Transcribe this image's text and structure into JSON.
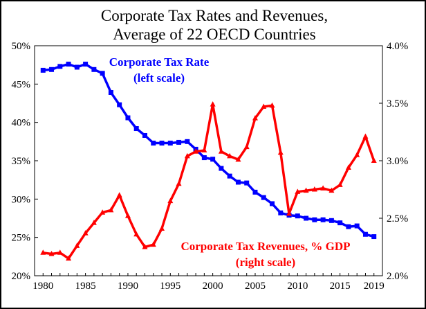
{
  "chart_data": {
    "type": "line",
    "title_line1": "Corporate Tax Rates and Revenues,",
    "title_line2": "Average of 22 OECD Countries",
    "x": [
      1980,
      1981,
      1982,
      1983,
      1984,
      1985,
      1986,
      1987,
      1988,
      1989,
      1990,
      1991,
      1992,
      1993,
      1994,
      1995,
      1996,
      1997,
      1998,
      1999,
      2000,
      2001,
      2002,
      2003,
      2004,
      2005,
      2006,
      2007,
      2008,
      2009,
      2010,
      2011,
      2012,
      2013,
      2014,
      2015,
      2016,
      2017,
      2018,
      2019
    ],
    "xlim": [
      1979,
      2020
    ],
    "x_ticks": [
      "1980",
      "1985",
      "1990",
      "1995",
      "2000",
      "2005",
      "2010",
      "2015",
      "2019"
    ],
    "left_axis": {
      "ylim": [
        20,
        50
      ],
      "tick_values": [
        20,
        25,
        30,
        35,
        40,
        45,
        50
      ],
      "tick_labels": [
        "20%",
        "25%",
        "30%",
        "35%",
        "40%",
        "45%",
        "50%"
      ]
    },
    "right_axis": {
      "ylim": [
        2.0,
        4.0
      ],
      "tick_values": [
        2.0,
        2.5,
        3.0,
        3.5,
        4.0
      ],
      "tick_labels": [
        "2.0%",
        "2.5%",
        "3.0%",
        "3.5%",
        "4.0%"
      ]
    },
    "series": [
      {
        "name": "Corporate Tax Rate",
        "axis": "left",
        "color": "#0000ff",
        "marker": "square",
        "annotation_line1": "Corporate Tax Rate",
        "annotation_line2": "(left scale)",
        "values": [
          46.8,
          46.9,
          47.3,
          47.6,
          47.2,
          47.6,
          46.9,
          46.4,
          43.9,
          42.3,
          40.6,
          39.2,
          38.3,
          37.3,
          37.3,
          37.3,
          37.4,
          37.5,
          36.5,
          35.4,
          35.2,
          34.0,
          33.0,
          32.2,
          32.1,
          30.9,
          30.2,
          29.4,
          28.2,
          27.9,
          27.8,
          27.5,
          27.3,
          27.3,
          27.2,
          26.9,
          26.4,
          26.5,
          25.4,
          25.1
        ]
      },
      {
        "name": "Corporate Tax Revenues, % GDP",
        "axis": "right",
        "color": "#ff0000",
        "marker": "triangle",
        "annotation_line1": "Corporate Tax Revenues, % GDP",
        "annotation_line2": "(right scale)",
        "values": [
          2.2,
          2.19,
          2.2,
          2.15,
          2.26,
          2.37,
          2.46,
          2.55,
          2.57,
          2.7,
          2.52,
          2.36,
          2.25,
          2.27,
          2.41,
          2.65,
          2.8,
          3.04,
          3.08,
          3.09,
          3.49,
          3.08,
          3.04,
          3.01,
          3.12,
          3.37,
          3.47,
          3.48,
          3.07,
          2.54,
          2.73,
          2.74,
          2.75,
          2.76,
          2.74,
          2.79,
          2.94,
          3.05,
          3.21,
          3.0
        ]
      }
    ]
  }
}
